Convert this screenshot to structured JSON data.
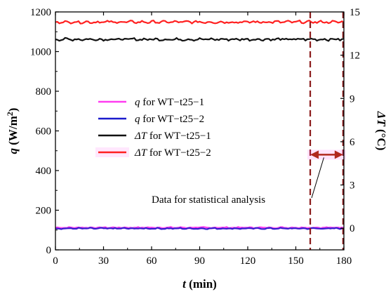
{
  "chart_data": {
    "type": "line",
    "xlabel": {
      "italic": "t",
      "rest": " (min)"
    },
    "ylabel_left": {
      "italic": "q",
      "rest": " (W/m",
      "sup": "2",
      "close": ")"
    },
    "ylabel_right": {
      "italic": "ΔT",
      "rest": " (°C)"
    },
    "xlim": [
      0,
      180
    ],
    "ylim_left": [
      0,
      1200
    ],
    "ylim_right": [
      -1.5,
      15
    ],
    "x_ticks": [
      "0",
      "30",
      "60",
      "90",
      "120",
      "150",
      "180"
    ],
    "y_left_ticks": [
      "0",
      "200",
      "400",
      "600",
      "800",
      "1000",
      "1200"
    ],
    "y_right_ticks": [
      "0",
      "3",
      "6",
      "9",
      "12",
      "15"
    ],
    "x_tick_values": [
      0,
      30,
      60,
      90,
      120,
      150,
      180
    ],
    "y_left_tick_values": [
      0,
      200,
      400,
      600,
      800,
      1000,
      1200
    ],
    "y_right_tick_values": [
      0,
      3,
      6,
      9,
      12,
      15
    ],
    "series": [
      {
        "name": "q for WT−t25−1",
        "name_italic": "q",
        "name_rest": " for WT−t25−1",
        "color": "#ff3cf0",
        "axis": "left",
        "mean": 112,
        "noise": 2.5
      },
      {
        "name": "q for WT−t25−2",
        "name_italic": "q",
        "name_rest": " for WT−t25−2",
        "color": "#1a1acc",
        "axis": "left",
        "mean": 108,
        "noise": 2.5
      },
      {
        "name": "ΔT for WT−t25−1",
        "name_italic": "ΔT",
        "name_rest": " for WT−t25−1",
        "color": "#111111",
        "axis": "right",
        "mean": 13.1,
        "noise": 0.07
      },
      {
        "name": "ΔT for WT−t25−2",
        "name_italic": "ΔT",
        "name_rest": " for WT−t25−2",
        "color": "#ff2020",
        "axis": "right",
        "mean": 14.3,
        "noise": 0.07
      }
    ],
    "legend_position": "center-left",
    "statistical_window": {
      "x_start": 159,
      "x_end": 179.5,
      "line_color": "#8b1a1a"
    },
    "arrow": {
      "y_right": 5.1,
      "color": "#b0281e"
    },
    "annotation": "Data for statistical analysis",
    "grid": false
  }
}
